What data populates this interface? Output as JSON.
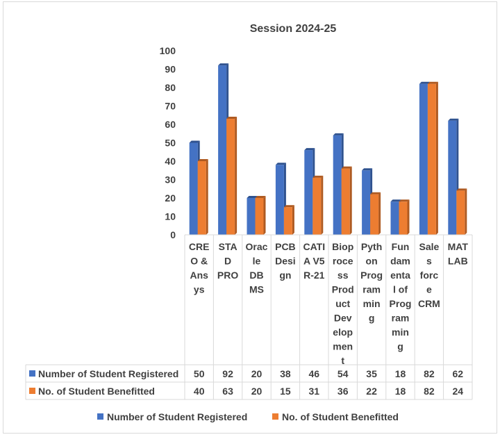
{
  "chart_data": {
    "type": "bar",
    "title": "Session 2024-25",
    "categories": [
      [
        "CRE",
        "O &",
        "Ans",
        "ys"
      ],
      [
        "STA",
        "D",
        "PRO"
      ],
      [
        "Orac",
        "le",
        "DB",
        "MS"
      ],
      [
        "PCB",
        "Desi",
        "gn"
      ],
      [
        "CATI",
        "A V5",
        "R-21"
      ],
      [
        "Biop",
        "roce",
        "ss",
        "Prod",
        "uct",
        "Dev",
        "elop",
        "men",
        "t"
      ],
      [
        "Pyth",
        "on",
        "Prog",
        "ram",
        "min",
        "g"
      ],
      [
        "Fun",
        "dam",
        "enta",
        "l of",
        "Prog",
        "ram",
        "min",
        "g"
      ],
      [
        "Sale",
        "s",
        "forc",
        "e",
        "CRM"
      ],
      [
        "MAT",
        "LAB"
      ]
    ],
    "category_names": [
      "CREO & Ansys",
      "STAD PRO",
      "Oracle DBMS",
      "PCB Design",
      "CATIA V5 R-21",
      "Bioprocess Product Development",
      "Python Programming",
      "Fundamental of Programming",
      "Sales force CRM",
      "MATLAB"
    ],
    "series": [
      {
        "name": "Number of Student Registered",
        "values": [
          50,
          92,
          20,
          38,
          46,
          54,
          35,
          18,
          82,
          62
        ],
        "color": "#4472c4",
        "side_color": "#2f528f"
      },
      {
        "name": "No. of Student Benefitted",
        "values": [
          40,
          63,
          20,
          15,
          31,
          36,
          22,
          18,
          82,
          24
        ],
        "color": "#ed7d31",
        "side_color": "#ae5a21"
      }
    ],
    "ylim": [
      0,
      100
    ],
    "yticks": [
      "0",
      "10",
      "20",
      "30",
      "40",
      "50",
      "60",
      "70",
      "80",
      "90",
      "100"
    ],
    "grid": false,
    "legend_position": "bottom",
    "data_table": true
  }
}
